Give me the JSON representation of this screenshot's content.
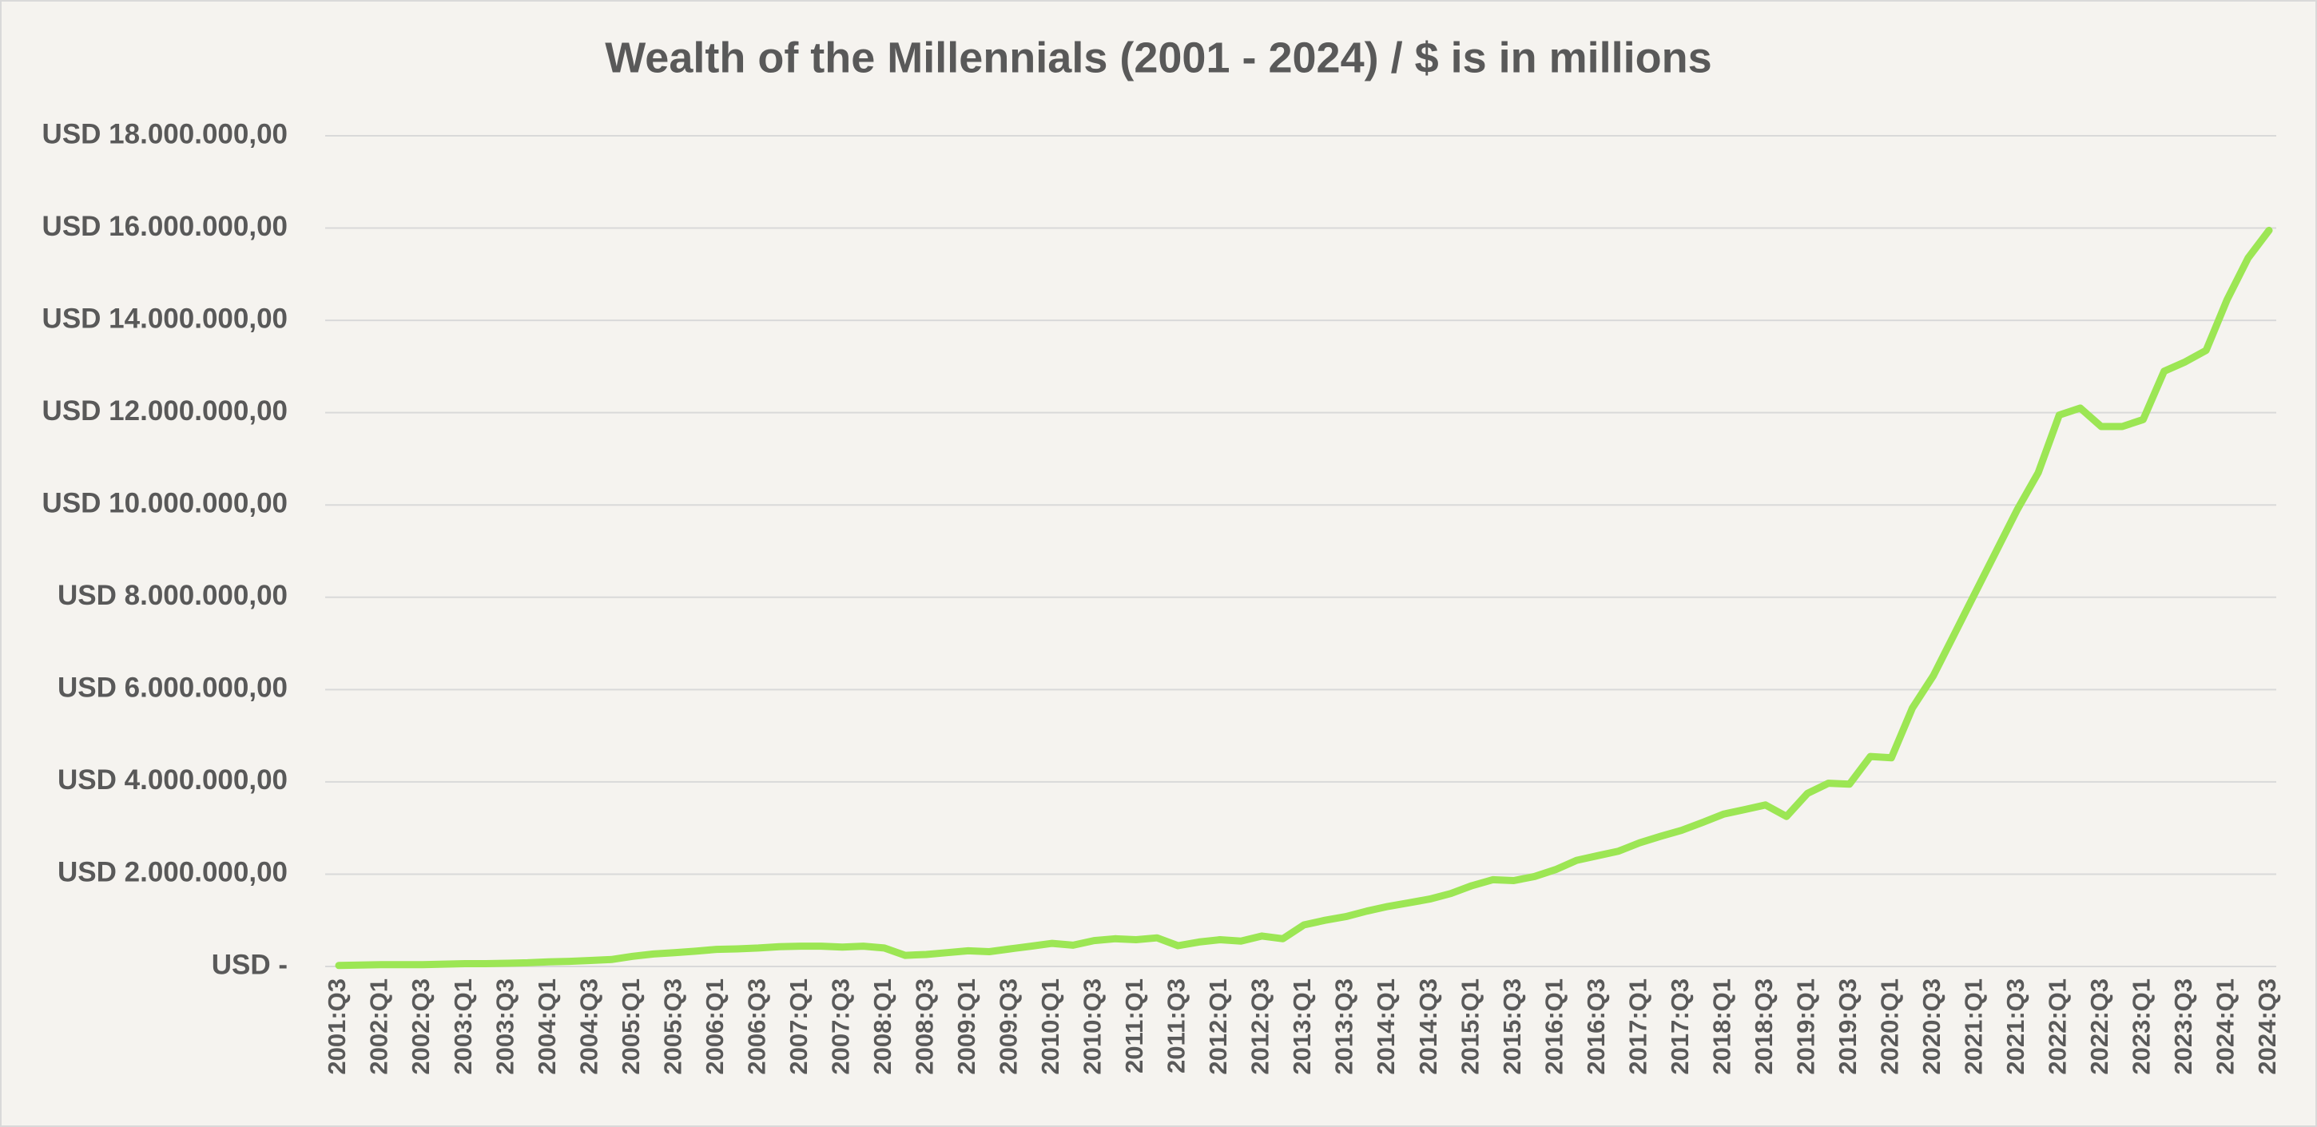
{
  "chart_data": {
    "type": "line",
    "title": "Wealth of the Millennials  (2001 - 2024)  / $ is in millions",
    "categories": [
      "2001:Q3",
      null,
      "2002:Q1",
      null,
      "2002:Q3",
      null,
      "2003:Q1",
      null,
      "2003:Q3",
      null,
      "2004:Q1",
      null,
      "2004:Q3",
      null,
      "2005:Q1",
      null,
      "2005:Q3",
      null,
      "2006:Q1",
      null,
      "2006:Q3",
      null,
      "2007:Q1",
      null,
      "2007:Q3",
      null,
      "2008:Q1",
      null,
      "2008:Q3",
      null,
      "2009:Q1",
      null,
      "2009:Q3",
      null,
      "2010:Q1",
      null,
      "2010:Q3",
      null,
      "2011:Q1",
      null,
      "2011:Q3",
      null,
      "2012:Q1",
      null,
      "2012:Q3",
      null,
      "2013:Q1",
      null,
      "2013:Q3",
      null,
      "2014:Q1",
      null,
      "2014:Q3",
      null,
      "2015:Q1",
      null,
      "2015:Q3",
      null,
      "2016:Q1",
      null,
      "2016:Q3",
      null,
      "2017:Q1",
      null,
      "2017:Q3",
      null,
      "2018:Q1",
      null,
      "2018:Q3",
      null,
      "2019:Q1",
      null,
      "2019:Q3",
      null,
      "2020:Q1",
      null,
      "2020:Q3",
      null,
      "2021:Q1",
      null,
      "2021:Q3",
      null,
      "2022:Q1",
      null,
      "2022:Q3",
      null,
      "2023:Q1",
      null,
      "2023:Q3",
      null,
      "2024:Q1",
      null,
      "2024:Q3"
    ],
    "values": [
      20000,
      30000,
      40000,
      40000,
      40000,
      50000,
      60000,
      60000,
      70000,
      80000,
      100000,
      110000,
      130000,
      150000,
      220000,
      270000,
      300000,
      330000,
      370000,
      380000,
      400000,
      430000,
      440000,
      440000,
      420000,
      440000,
      400000,
      240000,
      260000,
      300000,
      340000,
      320000,
      380000,
      440000,
      500000,
      460000,
      560000,
      600000,
      580000,
      620000,
      450000,
      530000,
      580000,
      550000,
      660000,
      600000,
      900000,
      1000000,
      1080000,
      1200000,
      1300000,
      1380000,
      1460000,
      1580000,
      1750000,
      1880000,
      1860000,
      1950000,
      2100000,
      2300000,
      2400000,
      2500000,
      2680000,
      2820000,
      2950000,
      3120000,
      3300000,
      3400000,
      3500000,
      3250000,
      3750000,
      3970000,
      3950000,
      4550000,
      4520000,
      5600000,
      6300000,
      7200000,
      8100000,
      9000000,
      9900000,
      10700000,
      11950000,
      12100000,
      11700000,
      11700000,
      11850000,
      12900000,
      13100000,
      13350000,
      14450000,
      15350000,
      15950000
    ],
    "color": "#9ce654",
    "ylim": [
      0,
      18000000
    ],
    "yticks": [
      {
        "value": 0,
        "label": "USD -"
      },
      {
        "value": 2000000,
        "label": "USD 2.000.000,00"
      },
      {
        "value": 4000000,
        "label": "USD 4.000.000,00"
      },
      {
        "value": 6000000,
        "label": "USD 6.000.000,00"
      },
      {
        "value": 8000000,
        "label": "USD 8.000.000,00"
      },
      {
        "value": 10000000,
        "label": "USD 10.000.000,00"
      },
      {
        "value": 12000000,
        "label": "USD 12.000.000,00"
      },
      {
        "value": 14000000,
        "label": "USD 14.000.000,00"
      },
      {
        "value": 16000000,
        "label": "USD 16.000.000,00"
      },
      {
        "value": 18000000,
        "label": "USD 18.000.000,00"
      }
    ],
    "grid": true
  }
}
